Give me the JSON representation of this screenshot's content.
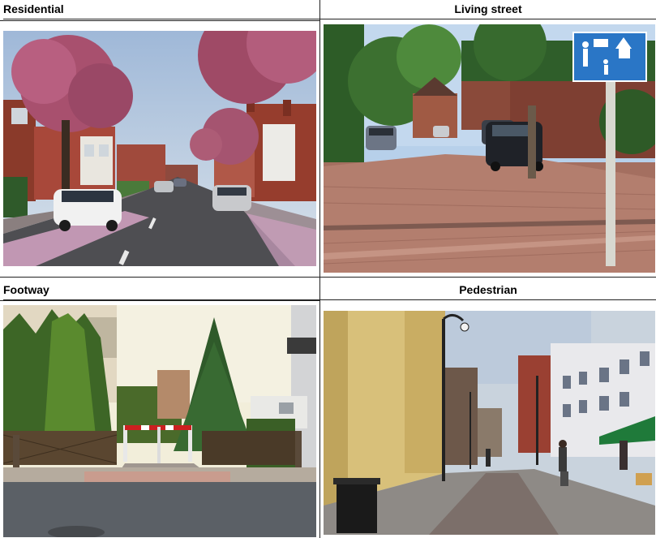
{
  "panels": [
    {
      "title": "Residential"
    },
    {
      "title": "Living street"
    },
    {
      "title": "Footway"
    },
    {
      "title": "Pedestrian"
    }
  ]
}
